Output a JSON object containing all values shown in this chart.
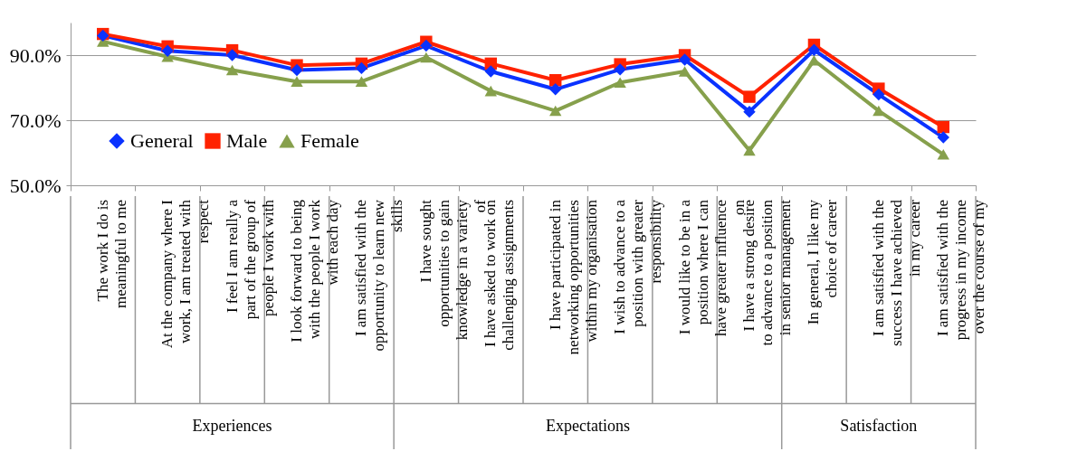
{
  "chart_data": {
    "type": "line",
    "categories": [
      "The work I do is meaningful to me",
      "At the company where I work, I am treated with respect",
      "I feel I am really a part of the group of people I work with",
      "I look forward to being with the people I work with each day",
      "I am satisfied with the opportunity to learn new skills",
      "I have sought opportunities to gain knowledge in a variety of",
      "I have asked to work on challenging assignments",
      "I have participated in networking opportunities within my organisation",
      "I wish to advance to a position with greater responsibility",
      "I would like to be in a position where I can have greater influence on",
      "I have a strong desire to advance to a position in senior management",
      "In general, I like my choice of career",
      "I am satisfied with the success I have achieved in my career",
      "I am satisfied with the progress in my income over the course of my"
    ],
    "series": [
      {
        "name": "General",
        "color": "#0a32ff",
        "marker": "diamond",
        "values": [
          96.0,
          91.3,
          90.0,
          85.4,
          86.0,
          92.9,
          85.0,
          79.5,
          85.6,
          88.6,
          72.6,
          91.6,
          77.9,
          64.7
        ]
      },
      {
        "name": "Male",
        "color": "#ff2200",
        "marker": "square",
        "values": [
          96.5,
          92.7,
          91.5,
          86.9,
          87.4,
          94.1,
          87.4,
          82.3,
          87.2,
          90.0,
          77.2,
          93.2,
          79.7,
          67.9
        ]
      },
      {
        "name": "Female",
        "color": "#86a04c",
        "marker": "triangle",
        "values": [
          94.2,
          89.5,
          85.4,
          81.9,
          81.9,
          89.3,
          79.0,
          72.9,
          81.6,
          85.0,
          60.7,
          88.4,
          72.9,
          59.5
        ]
      }
    ],
    "ylim": [
      50,
      100
    ],
    "yticks": [
      {
        "value": 50,
        "label": "50.0%"
      },
      {
        "value": 70,
        "label": "70.0%"
      },
      {
        "value": 90,
        "label": "90.0%"
      }
    ],
    "grid": "y",
    "legend": "bottom left",
    "line_style": "solid",
    "annotations": [
      "Experiences",
      "Expectations",
      "Satisfaction"
    ]
  }
}
